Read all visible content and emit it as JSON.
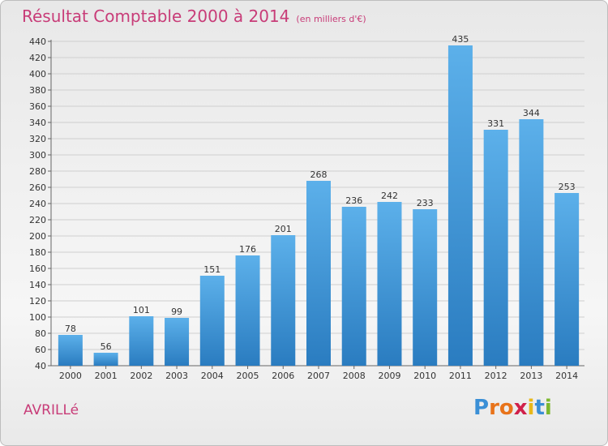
{
  "chart_data": {
    "type": "bar",
    "title": "Résultat Comptable 2000 à 2014",
    "subtitle": "(en milliers d'€)",
    "categories": [
      "2000",
      "2001",
      "2002",
      "2003",
      "2004",
      "2005",
      "2006",
      "2007",
      "2008",
      "2009",
      "2010",
      "2011",
      "2012",
      "2013",
      "2014"
    ],
    "values": [
      78,
      56,
      101,
      99,
      151,
      176,
      201,
      268,
      236,
      242,
      233,
      435,
      331,
      344,
      253
    ],
    "ylim": [
      40,
      440
    ],
    "yticks": [
      40,
      60,
      80,
      100,
      120,
      140,
      160,
      180,
      200,
      220,
      240,
      260,
      280,
      300,
      320,
      340,
      360,
      380,
      400,
      420,
      440
    ],
    "grid": true,
    "bar_color": "#3b94d8"
  },
  "footer": {
    "city": "AVRILLé",
    "logo_letters": [
      "P",
      "r",
      "o",
      "x",
      "i",
      "t",
      "i"
    ],
    "logo_colors": [
      "#3a8fd6",
      "#e8731a",
      "#e8731a",
      "#d0204a",
      "#e8b81a",
      "#3a8fd6",
      "#7cb82f"
    ]
  }
}
